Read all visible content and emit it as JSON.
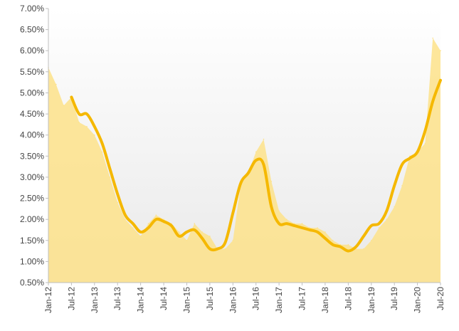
{
  "chart_data": {
    "type": "area",
    "title": "",
    "xlabel": "",
    "ylabel": "",
    "x_range": [
      "2012-01",
      "2020-07"
    ],
    "ylim": [
      0.5,
      7.0
    ],
    "y_ticks": [
      "0.50%",
      "1.00%",
      "1.50%",
      "2.00%",
      "2.50%",
      "3.00%",
      "3.50%",
      "4.00%",
      "4.50%",
      "5.00%",
      "5.50%",
      "6.00%",
      "6.50%",
      "7.00%"
    ],
    "x_ticks": [
      "Jan-12",
      "Jul-12",
      "Jan-13",
      "Jul-13",
      "Jan-14",
      "Jul-14",
      "Jan-15",
      "Jul-15",
      "Jan-16",
      "Jul-16",
      "Jan-17",
      "Jul-17",
      "Jan-18",
      "Jul-18",
      "Jan-19",
      "Jul-19",
      "Jan-20",
      "Jul-20"
    ],
    "grid": false,
    "legend": "none",
    "colors": {
      "area": "#fde28a",
      "line": "#f5b800"
    },
    "series": [
      {
        "type": "area",
        "x": [
          "2012-01",
          "2012-03",
          "2012-05",
          "2012-07",
          "2012-09",
          "2012-11",
          "2013-01",
          "2013-03",
          "2013-05",
          "2013-07",
          "2013-09",
          "2013-11",
          "2014-01",
          "2014-03",
          "2014-05",
          "2014-07",
          "2014-09",
          "2014-11",
          "2015-01",
          "2015-03",
          "2015-05",
          "2015-07",
          "2015-09",
          "2015-11",
          "2016-01",
          "2016-03",
          "2016-05",
          "2016-07",
          "2016-09",
          "2016-11",
          "2017-01",
          "2017-03",
          "2017-05",
          "2017-07",
          "2017-09",
          "2017-11",
          "2018-01",
          "2018-03",
          "2018-05",
          "2018-07",
          "2018-09",
          "2018-11",
          "2019-01",
          "2019-03",
          "2019-05",
          "2019-07",
          "2019-09",
          "2019-11",
          "2020-01",
          "2020-03",
          "2020-05",
          "2020-07"
        ],
        "y": [
          5.6,
          5.2,
          4.7,
          4.9,
          4.3,
          4.2,
          4.0,
          3.6,
          3.0,
          2.4,
          2.0,
          1.8,
          1.6,
          1.9,
          2.1,
          2.0,
          1.9,
          1.7,
          1.5,
          1.9,
          1.7,
          1.6,
          1.3,
          1.3,
          1.5,
          2.8,
          3.1,
          3.6,
          3.9,
          2.9,
          2.2,
          2.0,
          1.9,
          1.9,
          1.8,
          1.8,
          1.7,
          1.5,
          1.4,
          1.4,
          1.3,
          1.3,
          1.5,
          1.8,
          2.0,
          2.3,
          2.8,
          3.5,
          3.6,
          3.8,
          6.3,
          6.0
        ]
      },
      {
        "type": "line",
        "x": [
          "2012-07",
          "2012-09",
          "2012-11",
          "2013-01",
          "2013-03",
          "2013-05",
          "2013-07",
          "2013-09",
          "2013-11",
          "2014-01",
          "2014-03",
          "2014-05",
          "2014-07",
          "2014-09",
          "2014-11",
          "2015-01",
          "2015-03",
          "2015-05",
          "2015-07",
          "2015-09",
          "2015-11",
          "2016-01",
          "2016-03",
          "2016-05",
          "2016-07",
          "2016-09",
          "2016-11",
          "2017-01",
          "2017-03",
          "2017-05",
          "2017-07",
          "2017-09",
          "2017-11",
          "2018-01",
          "2018-03",
          "2018-05",
          "2018-07",
          "2018-09",
          "2018-11",
          "2019-01",
          "2019-03",
          "2019-05",
          "2019-07",
          "2019-09",
          "2019-11",
          "2020-01",
          "2020-03",
          "2020-05",
          "2020-07"
        ],
        "y": [
          4.9,
          4.5,
          4.5,
          4.2,
          3.8,
          3.2,
          2.6,
          2.1,
          1.9,
          1.7,
          1.8,
          2.0,
          1.95,
          1.85,
          1.6,
          1.7,
          1.75,
          1.55,
          1.3,
          1.3,
          1.45,
          2.15,
          2.85,
          3.1,
          3.4,
          3.3,
          2.3,
          1.9,
          1.9,
          1.85,
          1.8,
          1.75,
          1.7,
          1.55,
          1.4,
          1.35,
          1.25,
          1.35,
          1.6,
          1.85,
          1.9,
          2.2,
          2.8,
          3.3,
          3.45,
          3.6,
          4.1,
          4.8,
          5.3
        ]
      }
    ]
  }
}
